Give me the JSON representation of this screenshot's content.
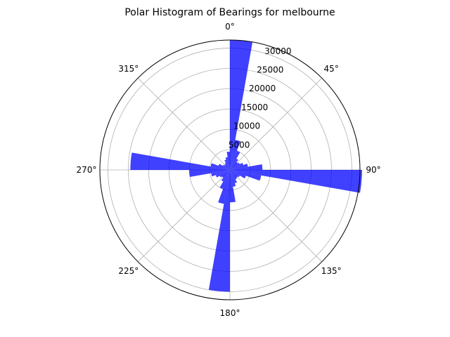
{
  "chart_data": {
    "type": "bar",
    "subtype": "polar-histogram",
    "title": "Polar Histogram of Bearings for melbourne",
    "bar_color": "#0000ff",
    "bar_opacity": 0.75,
    "theta_direction": "clockwise",
    "theta_zero": "north",
    "bin_width_deg": 10,
    "rmax": 32000,
    "radial_ticks": [
      5000,
      10000,
      15000,
      20000,
      25000,
      30000
    ],
    "radial_tick_labels": [
      "5000",
      "10000",
      "15000",
      "20000",
      "25000",
      "30000"
    ],
    "angle_ticks": [
      0,
      45,
      90,
      135,
      180,
      225,
      270,
      315
    ],
    "angle_tick_labels": [
      "0°",
      "45°",
      "90°",
      "135°",
      "180°",
      "225°",
      "270°",
      "315°"
    ],
    "bins": [
      0,
      10,
      20,
      30,
      40,
      50,
      60,
      70,
      80,
      90,
      100,
      110,
      120,
      130,
      140,
      150,
      160,
      170,
      180,
      190,
      200,
      210,
      220,
      230,
      240,
      250,
      260,
      270,
      280,
      290,
      300,
      310,
      320,
      330,
      340,
      350
    ],
    "values": [
      32000,
      7500,
      5000,
      3200,
      2500,
      2800,
      3500,
      4500,
      8000,
      32500,
      7800,
      4200,
      2800,
      2500,
      2700,
      3500,
      4200,
      8000,
      30000,
      8500,
      5000,
      3300,
      2500,
      2900,
      3700,
      4700,
      10000,
      24500,
      4800,
      3000,
      2000,
      1700,
      2000,
      2700,
      3200,
      4500
    ]
  }
}
